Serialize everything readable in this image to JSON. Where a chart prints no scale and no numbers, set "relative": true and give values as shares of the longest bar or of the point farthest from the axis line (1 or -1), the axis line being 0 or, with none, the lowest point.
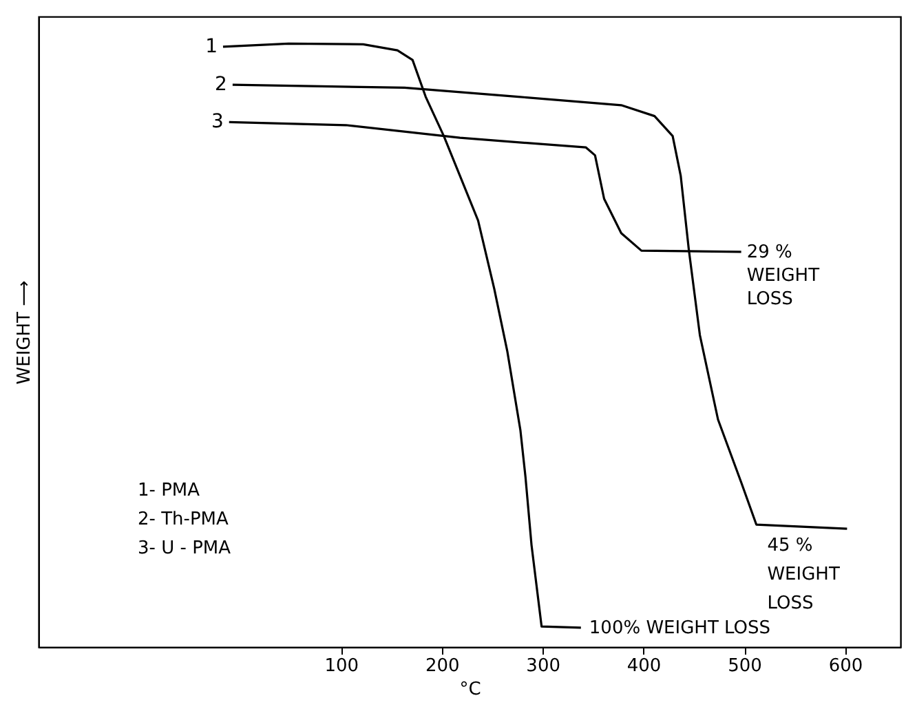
{
  "chart_data": {
    "type": "line",
    "relative": true,
    "xlabel": "°C",
    "ylabel": "WEIGHT ⟶",
    "xlim": [
      -200,
      655
    ],
    "xticks": [
      100,
      200,
      300,
      400,
      500,
      600
    ],
    "grid": false,
    "marker": "none",
    "line_style": "solid",
    "series": [
      {
        "name": "1",
        "color": "#000000",
        "x": [
          -17,
          48,
          122,
          156,
          171,
          184,
          202,
          218,
          236,
          252,
          265,
          278,
          283,
          289,
          299,
          338
        ],
        "values": [
          0.995,
          1.0,
          0.999,
          0.989,
          0.973,
          0.912,
          0.847,
          0.781,
          0.707,
          0.594,
          0.49,
          0.359,
          0.282,
          0.169,
          0.034,
          0.032
        ]
      },
      {
        "name": "2",
        "color": "#000000",
        "x": [
          -7.5,
          163,
          276,
          378,
          411,
          429,
          437,
          445,
          456,
          474,
          497,
          512,
          602
        ],
        "values": [
          0.932,
          0.927,
          0.912,
          0.898,
          0.88,
          0.847,
          0.781,
          0.659,
          0.517,
          0.377,
          0.273,
          0.203,
          0.196
        ]
      },
      {
        "name": "3",
        "color": "#000000",
        "x": [
          -11,
          105,
          218,
          343,
          352,
          361,
          378,
          398,
          497
        ],
        "values": [
          0.87,
          0.865,
          0.844,
          0.828,
          0.815,
          0.743,
          0.686,
          0.657,
          0.655
        ]
      }
    ],
    "annotations": [
      {
        "text": "29 %\nWEIGHT\nLOSS",
        "x": 497,
        "y": 0.655
      },
      {
        "text": "45 %\nWEIGHT\nLOSS",
        "x": 602,
        "y": 0.196
      },
      {
        "text": "100% WEIGHT  LOSS",
        "x": 338,
        "y": 0.032
      },
      "1- PMA\n2- Th-PMA\n3- U - PMA"
    ]
  }
}
